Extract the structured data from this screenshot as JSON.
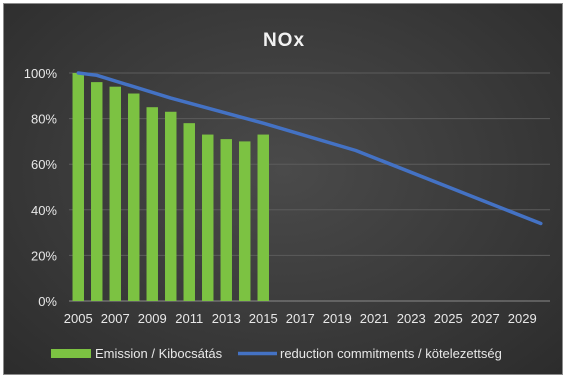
{
  "chart_data": {
    "type": "bar+line",
    "title": "NOx",
    "xlabel": "",
    "ylabel": "",
    "ylim": [
      0,
      100
    ],
    "y_ticks": [
      "0%",
      "20%",
      "40%",
      "60%",
      "80%",
      "100%"
    ],
    "x_tick_labels": [
      "2005",
      "2007",
      "2009",
      "2011",
      "2013",
      "2015",
      "2017",
      "2019",
      "2021",
      "2023",
      "2025",
      "2027",
      "2029"
    ],
    "x_years": [
      2005,
      2006,
      2007,
      2008,
      2009,
      2010,
      2011,
      2012,
      2013,
      2014,
      2015,
      2016,
      2017,
      2018,
      2019,
      2020,
      2021,
      2022,
      2023,
      2024,
      2025,
      2026,
      2027,
      2028,
      2029,
      2030
    ],
    "series": [
      {
        "name": "Emission / Kibocsátás",
        "type": "bar",
        "color": "#7cc242",
        "x": [
          2005,
          2006,
          2007,
          2008,
          2009,
          2010,
          2011,
          2012,
          2013,
          2014,
          2015
        ],
        "values": [
          100,
          96,
          94,
          91,
          85,
          83,
          78,
          73,
          71,
          70,
          73
        ]
      },
      {
        "name": "reduction commitments / kötelezettség",
        "type": "line",
        "color": "#4472c4",
        "x": [
          2005,
          2006,
          2010,
          2015,
          2020,
          2025,
          2030
        ],
        "values": [
          100,
          99,
          89,
          78,
          66,
          50,
          34
        ]
      }
    ],
    "grid": true,
    "legend_position": "bottom"
  }
}
